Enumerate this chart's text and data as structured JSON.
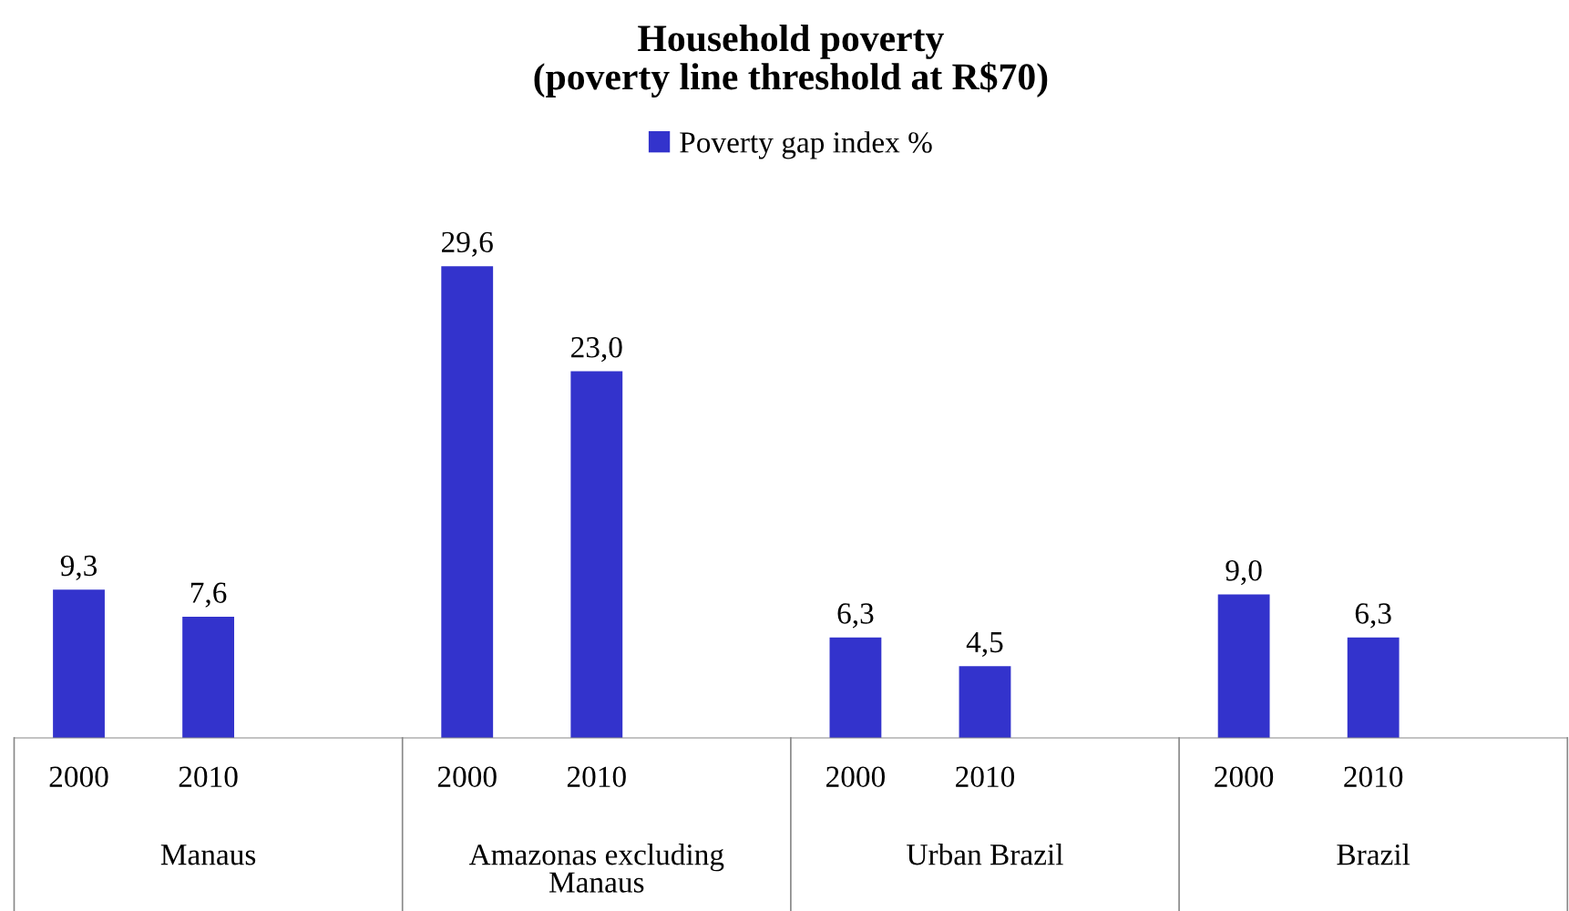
{
  "chart_data": {
    "type": "bar",
    "title": "Household poverty\n(poverty line threshold at R$70)",
    "categories": [
      "2000",
      "2010",
      null,
      "2000",
      "2010",
      null,
      "2000",
      "2010",
      null,
      "2000",
      "2010",
      null
    ],
    "series": [
      {
        "name": "Poverty gap index %",
        "color": "#3333cc",
        "values": [
          9.3,
          7.6,
          null,
          29.6,
          23.0,
          null,
          6.3,
          4.5,
          null,
          9.0,
          6.3,
          null
        ],
        "value_labels": [
          "9,3",
          "7,6",
          null,
          "29,6",
          "23,0",
          null,
          "6,3",
          "4,5",
          null,
          "9,0",
          "6,3",
          null
        ]
      }
    ],
    "annotations": [
      "Manaus",
      "Amazonas excluding\nManaus",
      "Urban Brazil",
      "Brazil"
    ],
    "legend": "top",
    "grid": false
  }
}
